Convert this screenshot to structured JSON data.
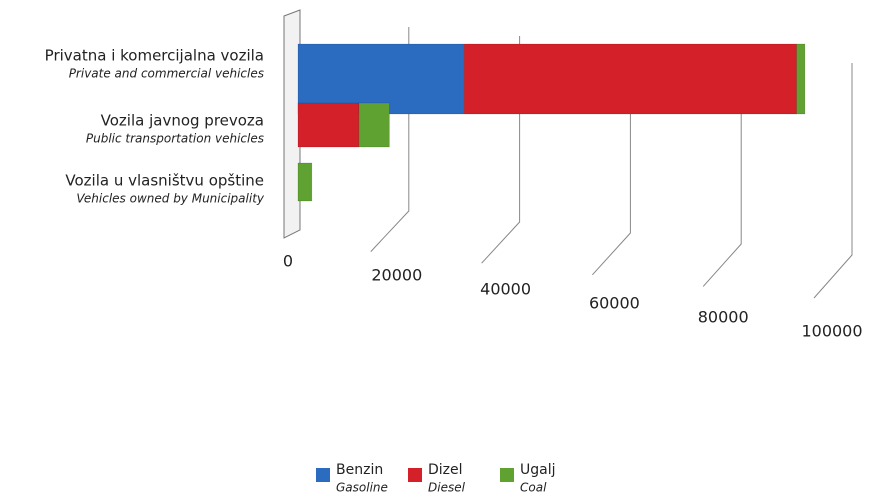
{
  "chart_data": {
    "type": "bar",
    "orientation": "horizontal",
    "stacked": true,
    "categories": [
      "Privatna i komercijalna vozila",
      "Vozila javnog prevoza",
      "Vozila u vlasništvu opštine"
    ],
    "categories_en": [
      "Private and commercial vehicles",
      "Public transportation vehicles",
      "Vehicles owned by Municipality"
    ],
    "series": [
      {
        "name": "Benzin",
        "name_en": "Gasoline",
        "color": "#2b6cc0",
        "values": [
          30000,
          0,
          0
        ]
      },
      {
        "name": "Dizel",
        "name_en": "Diesel",
        "color": "#d42129",
        "values": [
          60000,
          11000,
          0
        ]
      },
      {
        "name": "Ugalj",
        "name_en": "Coal",
        "color": "#5fa232",
        "values": [
          1500,
          5500,
          2500
        ]
      }
    ],
    "xlim": [
      0,
      100000
    ],
    "xticks": [
      0,
      20000,
      40000,
      60000,
      80000,
      100000
    ],
    "grid": true,
    "legend": "bottom"
  }
}
